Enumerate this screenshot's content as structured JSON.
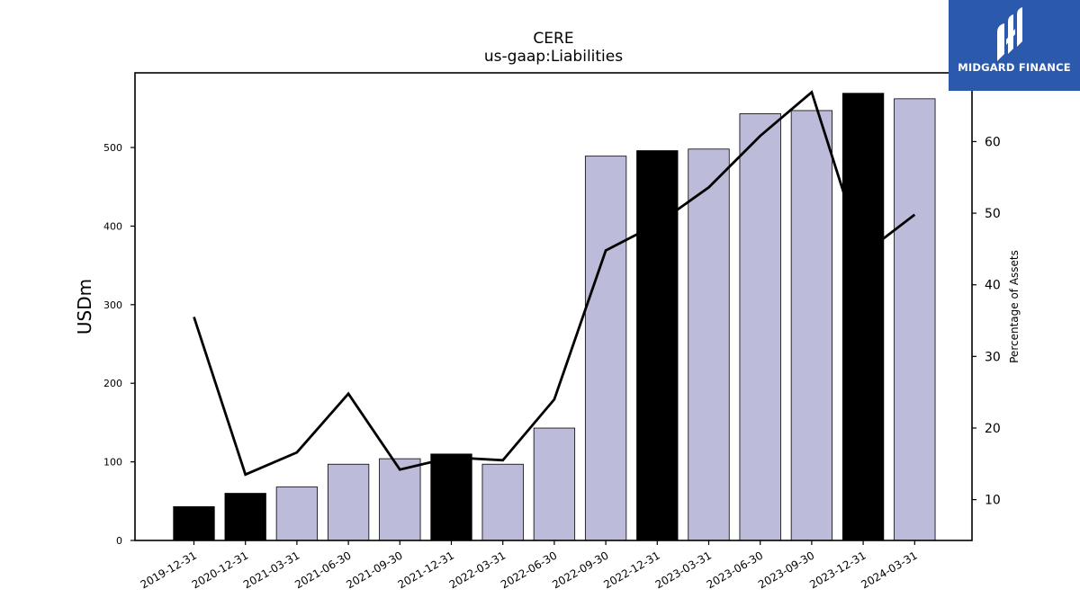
{
  "brand": {
    "name": "MIDGARD FINANCE",
    "background": "#2b5aad"
  },
  "chart_data": {
    "type": "bar",
    "title": "CERE",
    "subtitle": "us-gaap:Liabilities",
    "ylabel": "USDm",
    "y2label": "Percentage of Assets",
    "ylim": [
      0,
      595
    ],
    "y2lim": [
      4.3,
      69.6
    ],
    "yticks": [
      0,
      100,
      200,
      300,
      400,
      500
    ],
    "y2ticks": [
      10,
      20,
      30,
      40,
      50,
      60
    ],
    "categories": [
      "2019-12-31",
      "2020-12-31",
      "2021-03-31",
      "2021-06-30",
      "2021-09-30",
      "2021-12-31",
      "2022-03-31",
      "2022-06-30",
      "2022-09-30",
      "2022-12-31",
      "2023-03-31",
      "2023-06-30",
      "2023-09-30",
      "2023-12-31",
      "2024-03-31"
    ],
    "series": [
      {
        "kind": "bar",
        "values": [
          43,
          60,
          68,
          97,
          104,
          110,
          97,
          143,
          489,
          496,
          498,
          543,
          547,
          569,
          562
        ],
        "annual": [
          true,
          true,
          false,
          false,
          false,
          true,
          false,
          false,
          false,
          true,
          false,
          false,
          false,
          true,
          false
        ]
      },
      {
        "kind": "line",
        "axis": "right",
        "values": [
          35.5,
          13.5,
          16.6,
          24.8,
          14.2,
          15.9,
          15.5,
          24.0,
          44.8,
          48.5,
          53.6,
          60.8,
          66.9,
          44.3,
          49.8
        ]
      }
    ],
    "colors": {
      "annual_bar": "#000000",
      "quarter_bar": "#bdbbda",
      "line": "#000000"
    },
    "grid": false,
    "legend": "none"
  }
}
